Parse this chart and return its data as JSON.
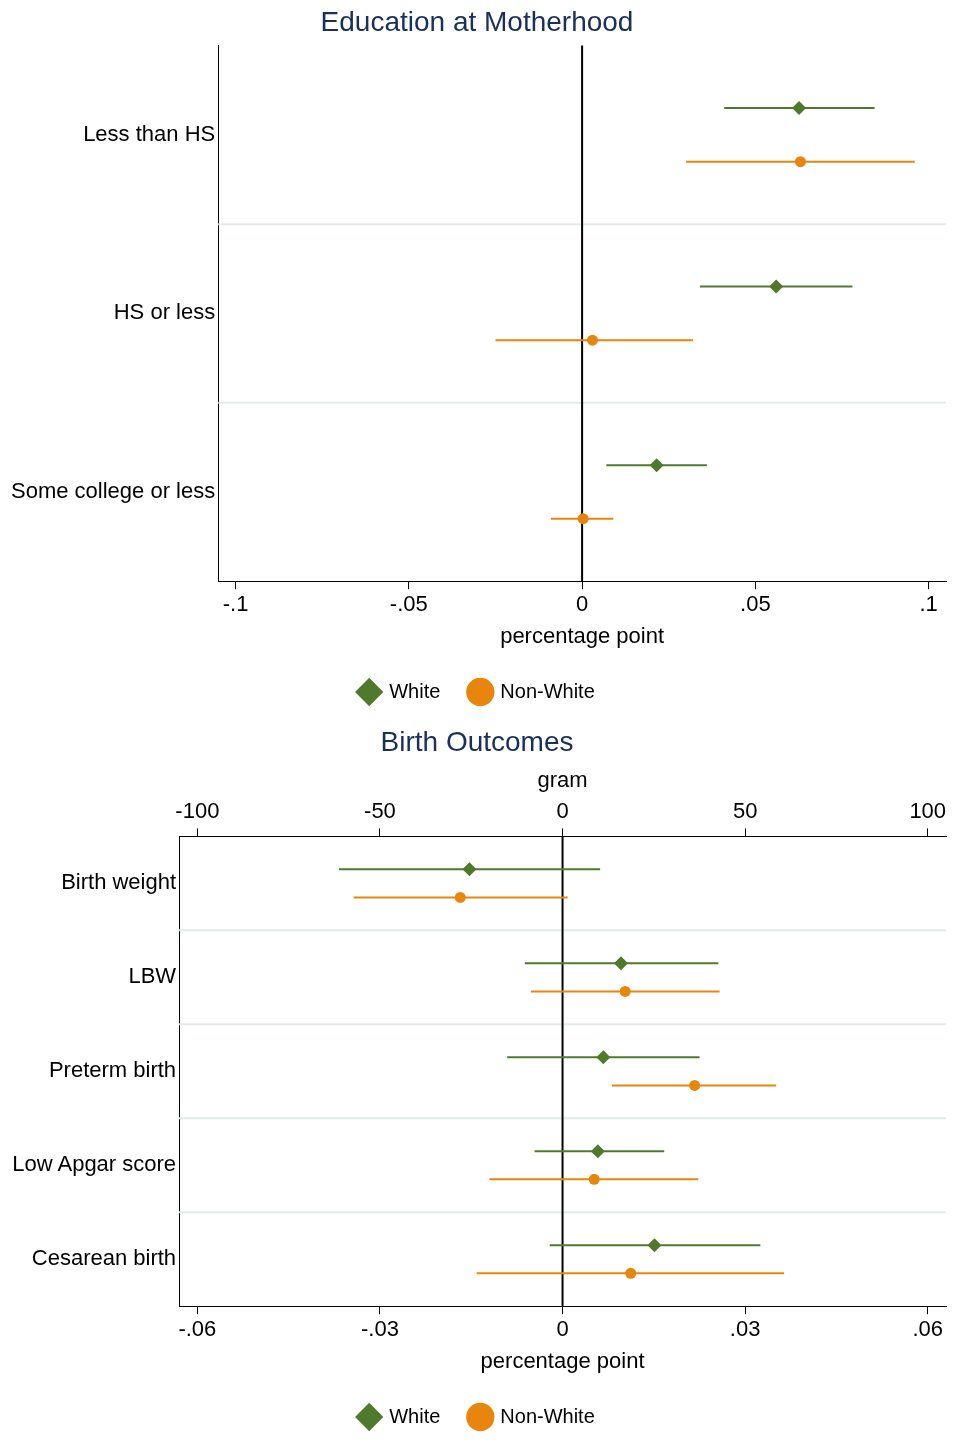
{
  "chart_data": [
    {
      "type": "scatter",
      "orientation": "horizontal",
      "title": "Education at Motherhood",
      "xlabel": "percentage point",
      "categories": [
        "Less than HS",
        "HS or less",
        "Some college or less"
      ],
      "xlim": [
        -0.105,
        0.105
      ],
      "xticks": [
        {
          "value": -0.1,
          "label": "-.1"
        },
        {
          "value": -0.05,
          "label": "-.05"
        },
        0,
        {
          "value": 0.05,
          "label": ".05"
        },
        {
          "value": 0.1,
          "label": ".1"
        }
      ],
      "grid": "y",
      "legend": "bottom",
      "ref_lines": [
        {
          "axis": "x",
          "value": 0,
          "color": "#000000"
        }
      ],
      "series": [
        {
          "name": "White",
          "color": "#4f7a2c",
          "marker": "diamond",
          "values": [
            0.0626,
            0.056,
            0.0215
          ],
          "errors": [
            [
              0.041,
              0.0844
            ],
            [
              0.034,
              0.078
            ],
            [
              0.007,
              0.036
            ]
          ]
        },
        {
          "name": "Non-White",
          "color": "#e8850c",
          "marker": "circle",
          "values": [
            0.063,
            0.003,
            0.0003
          ],
          "errors": [
            [
              0.03,
              0.096
            ],
            [
              -0.025,
              0.032
            ],
            [
              -0.009,
              0.009
            ]
          ]
        }
      ]
    },
    {
      "type": "scatter",
      "orientation": "horizontal",
      "title": "Birth Outcomes",
      "xlabel": "percentage point",
      "x2label": "gram",
      "categories": [
        "Birth weight",
        "LBW",
        "Preterm birth",
        "Low Apgar score",
        "Cesarean birth"
      ],
      "xlim": [
        -0.063,
        0.063
      ],
      "xticks": [
        {
          "value": -0.06,
          "label": "-.06"
        },
        {
          "value": -0.03,
          "label": "-.03"
        },
        0,
        {
          "value": 0.03,
          "label": ".03"
        },
        {
          "value": 0.06,
          "label": ".06"
        }
      ],
      "x2lim": [
        -105,
        105
      ],
      "x2ticks": [
        -100,
        -50,
        0,
        50,
        100
      ],
      "grid": "y",
      "legend": "bottom",
      "ref_lines": [
        {
          "axis": "x",
          "value": 0,
          "color": "#000000"
        }
      ],
      "series": [
        {
          "name": "White",
          "color": "#4f7a2c",
          "marker": "diamond",
          "values": [
            null,
            0.0096,
            0.0067,
            0.0058,
            0.0151
          ],
          "errors": [
            null,
            [
              -0.0062,
              0.0256
            ],
            [
              -0.0091,
              0.0225
            ],
            [
              -0.0046,
              0.0167
            ],
            [
              -0.0021,
              0.0325
            ]
          ]
        },
        {
          "name": "Non-White",
          "color": "#e8850c",
          "marker": "circle",
          "values": [
            null,
            0.0103,
            0.0217,
            0.0052,
            0.0112
          ],
          "errors": [
            null,
            [
              -0.0052,
              0.0258
            ],
            [
              0.0081,
              0.0351
            ],
            [
              -0.012,
              0.0223
            ],
            [
              -0.0141,
              0.0364
            ]
          ]
        },
        {
          "color": "#4f7a2c",
          "marker": "diamond",
          "axis": "x2",
          "values": [
            -25.5,
            null,
            null,
            null,
            null
          ],
          "errors": [
            [
              -61.2,
              10.3
            ],
            null,
            null,
            null,
            null
          ]
        },
        {
          "color": "#e8850c",
          "marker": "circle",
          "axis": "x2",
          "values": [
            -28.0,
            null,
            null,
            null,
            null
          ],
          "errors": [
            [
              -57.2,
              1.4
            ],
            null,
            null,
            null,
            null
          ]
        }
      ]
    }
  ]
}
